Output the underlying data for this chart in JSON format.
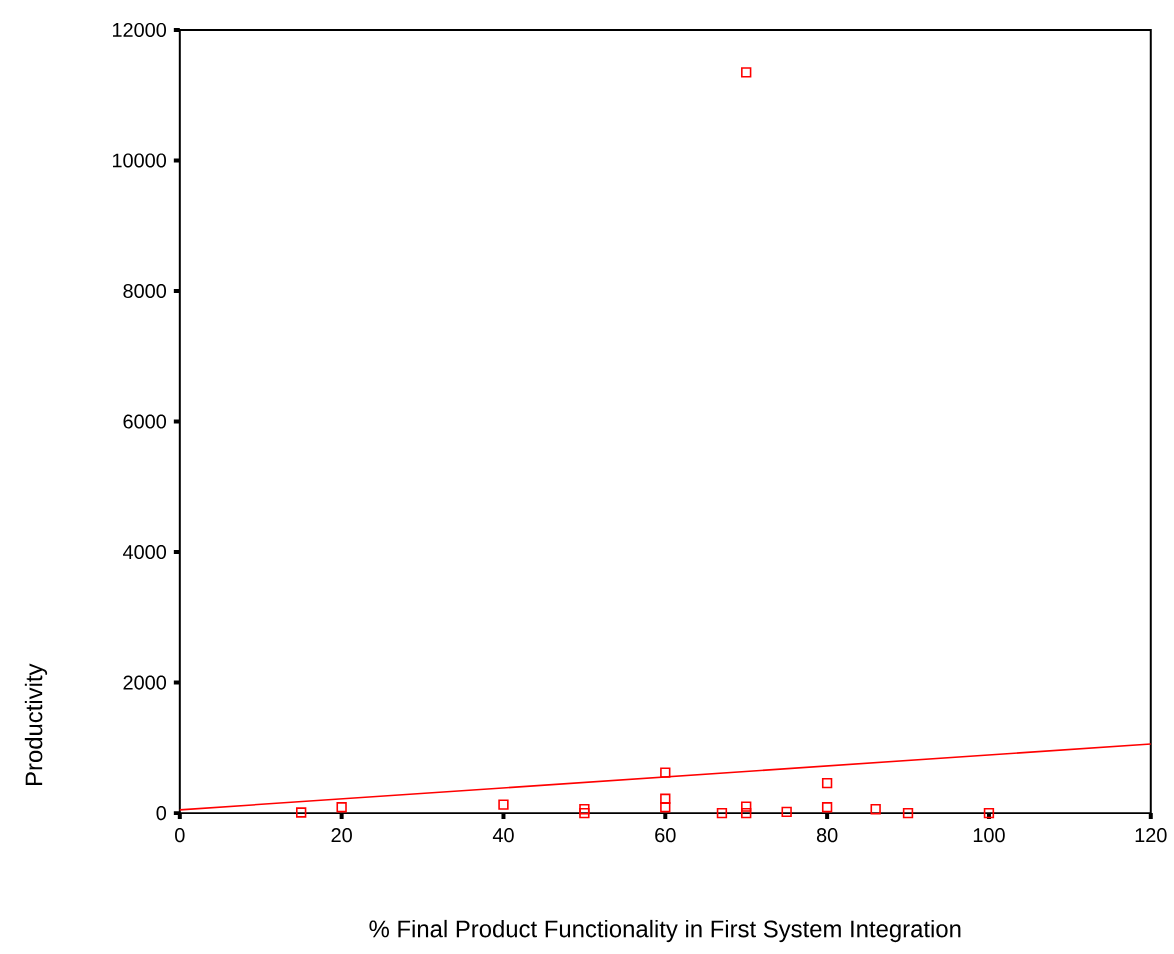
{
  "chart_data": {
    "type": "scatter",
    "xlabel": "% Final Product Functionality in First System Integration",
    "ylabel": "Productivity",
    "xlim": [
      0,
      120
    ],
    "ylim": [
      0,
      12000
    ],
    "xticks": [
      0,
      20,
      40,
      60,
      80,
      100,
      120
    ],
    "yticks": [
      0,
      2000,
      4000,
      6000,
      8000,
      10000,
      12000
    ],
    "grid": false,
    "series": [
      {
        "marker": "square",
        "color": "#ff0000",
        "x": [
          15,
          20,
          40,
          50,
          50,
          60,
          60,
          60,
          67,
          70,
          70,
          70,
          75,
          80,
          80,
          86,
          90,
          100
        ],
        "values": [
          10,
          90,
          130,
          60,
          0,
          620,
          220,
          90,
          0,
          100,
          0,
          11350,
          20,
          460,
          90,
          60,
          0,
          0
        ]
      },
      {
        "type": "line",
        "marker": "none",
        "color": "#ff0000",
        "x": [
          0,
          120
        ],
        "values": [
          50,
          1060
        ]
      }
    ]
  }
}
